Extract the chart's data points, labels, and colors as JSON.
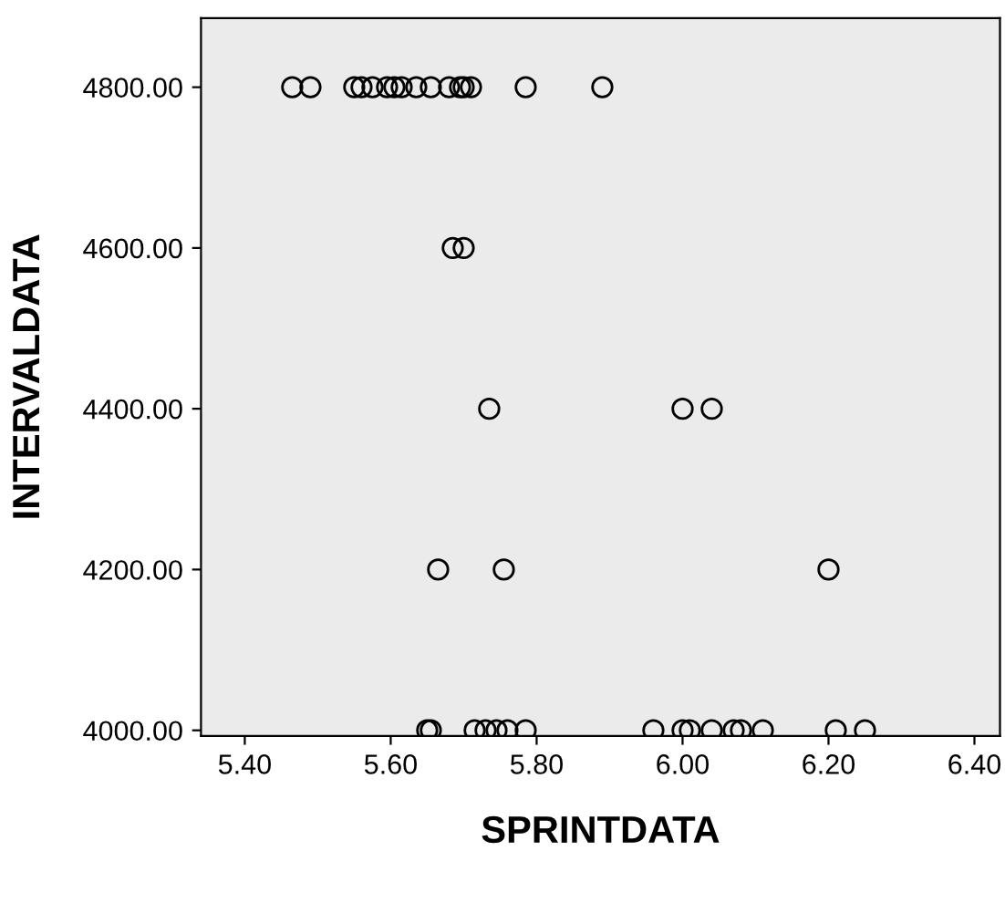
{
  "chart_data": {
    "type": "scatter",
    "xlabel": "SPRINTDATA",
    "ylabel": "INTERVALDATA",
    "marker": "circle",
    "grid": false,
    "legend": false,
    "xlim": [
      5.34,
      6.435
    ],
    "ylim": [
      3993,
      4886
    ],
    "xticks": [
      {
        "value": 5.4,
        "label": "5.40"
      },
      {
        "value": 5.6,
        "label": "5.60"
      },
      {
        "value": 5.8,
        "label": "5.80"
      },
      {
        "value": 6.0,
        "label": "6.00"
      },
      {
        "value": 6.2,
        "label": "6.20"
      },
      {
        "value": 6.4,
        "label": "6.40"
      }
    ],
    "yticks": [
      {
        "value": 4000,
        "label": "4000.00"
      },
      {
        "value": 4200,
        "label": "4200.00"
      },
      {
        "value": 4400,
        "label": "4400.00"
      },
      {
        "value": 4600,
        "label": "4600.00"
      },
      {
        "value": 4800,
        "label": "4800.00"
      }
    ],
    "series": [
      {
        "color": "#000000",
        "x": [
          5.465,
          5.49,
          5.55,
          5.56,
          5.575,
          5.595,
          5.605,
          5.615,
          5.635,
          5.655,
          5.68,
          5.695,
          5.7,
          5.71,
          5.785,
          5.89,
          5.685,
          5.7,
          5.735,
          6.0,
          6.04,
          5.665,
          5.755,
          6.2,
          5.65,
          5.655,
          5.715,
          5.73,
          5.745,
          5.76,
          5.785,
          5.96,
          6.0,
          6.01,
          6.04,
          6.07,
          6.08,
          6.11,
          6.21,
          6.25
        ],
        "values": [
          4800,
          4800,
          4800,
          4800,
          4800,
          4800,
          4800,
          4800,
          4800,
          4800,
          4800,
          4800,
          4800,
          4800,
          4800,
          4800,
          4600,
          4600,
          4400,
          4400,
          4400,
          4200,
          4200,
          4200,
          4000,
          4000,
          4000,
          4000,
          4000,
          4000,
          4000,
          4000,
          4000,
          4000,
          4000,
          4000,
          4000,
          4000,
          4000,
          4000
        ]
      }
    ]
  }
}
